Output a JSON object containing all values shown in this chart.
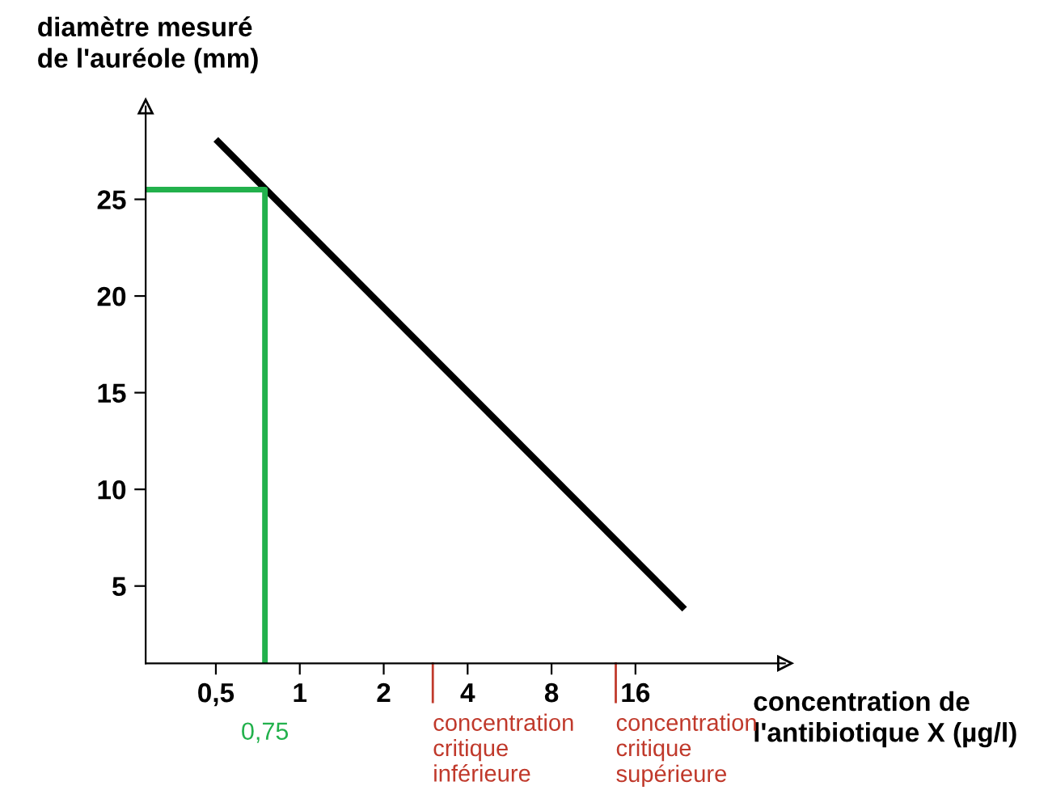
{
  "chart_data": {
    "type": "line",
    "xlabel": "concentration de\nl'antibiotique X (µg/l)",
    "ylabel": "diamètre mesuré\nde l'auréole (mm)",
    "log": "x",
    "xlim": [
      0.28,
      55
    ],
    "ylim": [
      1,
      29.8
    ],
    "xticks": [
      {
        "value": 0.5,
        "label": "0,5"
      },
      1,
      2,
      4,
      8,
      16
    ],
    "yticks": [
      5,
      10,
      15,
      20,
      25
    ],
    "grid": false,
    "legend": false,
    "series": [
      {
        "color": "#000000",
        "x": [
          0.5,
          24
        ],
        "values": [
          28.1,
          3.8
        ]
      },
      {
        "color": "#22b14c",
        "x": [
          0.28,
          0.75,
          0.75
        ],
        "values": [
          25.5,
          25.5,
          1
        ]
      }
    ],
    "ref_lines": [
      {
        "axis": "x",
        "value": 3,
        "label": "concentration\ncritique\ninférieure",
        "color": "#c0392b"
      },
      {
        "axis": "x",
        "value": 13.6,
        "label": "concentration\ncritique\nsupérieure",
        "color": "#c0392b"
      }
    ],
    "annotations": [
      {
        "text": "0,75",
        "x": 0.75,
        "y": 1
      }
    ]
  }
}
